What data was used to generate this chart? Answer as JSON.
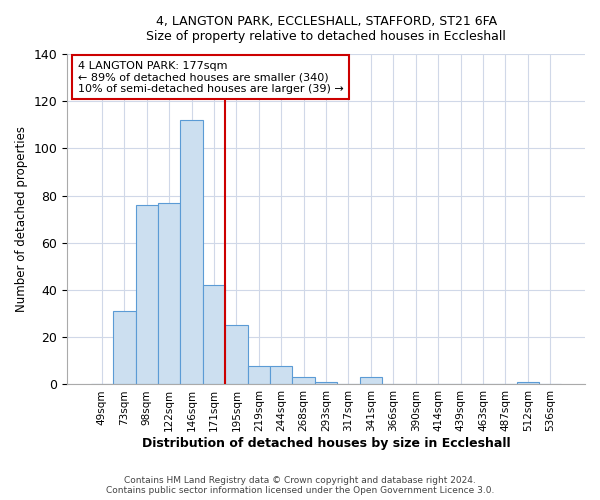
{
  "title1": "4, LANGTON PARK, ECCLESHALL, STAFFORD, ST21 6FA",
  "title2": "Size of property relative to detached houses in Eccleshall",
  "xlabel": "Distribution of detached houses by size in Eccleshall",
  "ylabel": "Number of detached properties",
  "bar_color": "#ccdff0",
  "bar_edge_color": "#5b9bd5",
  "categories": [
    "49sqm",
    "73sqm",
    "98sqm",
    "122sqm",
    "146sqm",
    "171sqm",
    "195sqm",
    "219sqm",
    "244sqm",
    "268sqm",
    "293sqm",
    "317sqm",
    "341sqm",
    "366sqm",
    "390sqm",
    "414sqm",
    "439sqm",
    "463sqm",
    "487sqm",
    "512sqm",
    "536sqm"
  ],
  "values": [
    0,
    31,
    76,
    77,
    112,
    42,
    25,
    8,
    8,
    3,
    1,
    0,
    3,
    0,
    0,
    0,
    0,
    0,
    0,
    1,
    0
  ],
  "vline_color": "#cc0000",
  "annotation_text": "4 LANGTON PARK: 177sqm\n← 89% of detached houses are smaller (340)\n10% of semi-detached houses are larger (39) →",
  "ylim": [
    0,
    140
  ],
  "yticks": [
    0,
    20,
    40,
    60,
    80,
    100,
    120,
    140
  ],
  "footer1": "Contains HM Land Registry data © Crown copyright and database right 2024.",
  "footer2": "Contains public sector information licensed under the Open Government Licence 3.0.",
  "bg_color": "#ffffff",
  "plot_bg_color": "#ffffff",
  "grid_color": "#d0d8e8"
}
